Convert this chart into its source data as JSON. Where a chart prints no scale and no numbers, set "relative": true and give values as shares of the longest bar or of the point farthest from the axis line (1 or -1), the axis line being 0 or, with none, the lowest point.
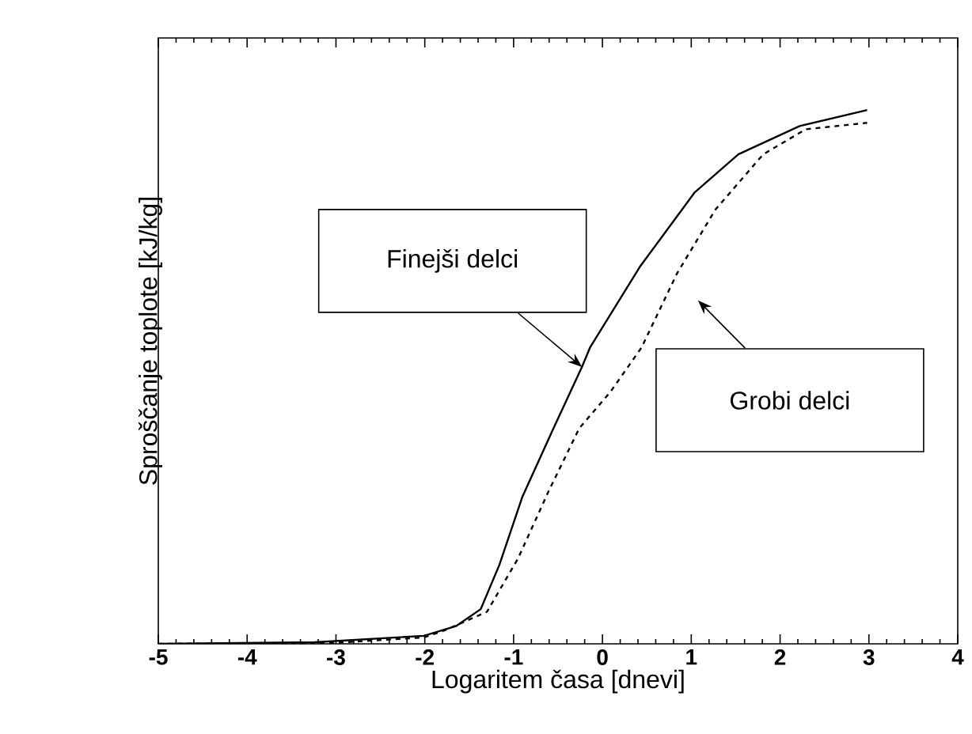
{
  "chart_data": {
    "type": "line",
    "relative": true,
    "xlabel": "Logaritem časa [dnevi]",
    "ylabel": "Sproščanje toplote [kJ/kg]",
    "xlim": [
      -5,
      4
    ],
    "xticks": [
      -5,
      -4,
      -3,
      -2,
      -1,
      0,
      1,
      2,
      3,
      4
    ],
    "grid": false,
    "marker": "none",
    "series": [
      {
        "color": "#000000",
        "line_style": "solid",
        "x": [
          -5,
          -3.24,
          -2.01,
          -1.65,
          -1.37,
          -1.16,
          -0.9,
          -0.55,
          -0.23,
          -0.14,
          0.42,
          1.04,
          1.53,
          2.22,
          2.98
        ],
        "values": [
          0,
          0.003,
          0.015,
          0.033,
          0.065,
          0.148,
          0.276,
          0.404,
          0.519,
          0.555,
          0.706,
          0.846,
          0.917,
          0.97,
          1.0
        ]
      },
      {
        "color": "#000000",
        "line_style": "dashed",
        "x": [
          -5,
          -3,
          -2.01,
          -1.78,
          -1.3,
          -0.95,
          -0.6,
          -0.26,
          0.09,
          0.44,
          0.84,
          1.27,
          1.81,
          2.29,
          2.98
        ],
        "values": [
          0,
          0.002,
          0.012,
          0.025,
          0.06,
          0.16,
          0.288,
          0.404,
          0.472,
          0.555,
          0.694,
          0.813,
          0.917,
          0.964,
          0.976
        ]
      }
    ],
    "annotations": [
      "Finejši delci",
      "Grobi delci"
    ]
  }
}
